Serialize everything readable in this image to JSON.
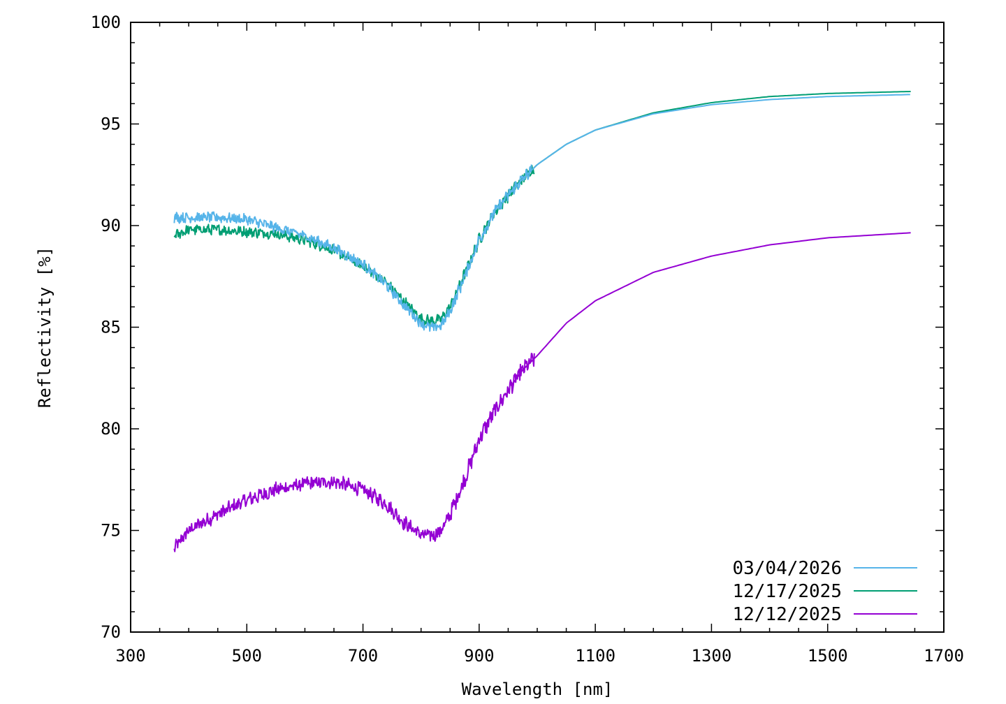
{
  "chart_data": {
    "type": "line",
    "xlabel": "Wavelength [nm]",
    "ylabel": "Reflectivity [%]",
    "xlim": [
      300,
      1700
    ],
    "ylim": [
      70,
      100
    ],
    "xticks": [
      300,
      500,
      700,
      900,
      1100,
      1300,
      1500,
      1700
    ],
    "yticks": [
      70,
      75,
      80,
      85,
      90,
      95,
      100
    ],
    "x_minor_step": 50,
    "y_minor_step": 1,
    "grid": false,
    "legend_position": "bottom-right",
    "series": [
      {
        "name": "03/04/2026",
        "color": "#56b4e9",
        "noise_until_x": 990,
        "noise_amplitude": [
          0.45,
          0.15
        ],
        "points": [
          [
            375,
            90.4
          ],
          [
            400,
            90.4
          ],
          [
            450,
            90.4
          ],
          [
            500,
            90.3
          ],
          [
            550,
            89.9
          ],
          [
            600,
            89.5
          ],
          [
            650,
            88.9
          ],
          [
            700,
            88.1
          ],
          [
            740,
            87.1
          ],
          [
            770,
            86.1
          ],
          [
            800,
            85.2
          ],
          [
            820,
            84.95
          ],
          [
            835,
            85.1
          ],
          [
            850,
            85.8
          ],
          [
            875,
            87.5
          ],
          [
            900,
            89.3
          ],
          [
            925,
            90.6
          ],
          [
            950,
            91.5
          ],
          [
            975,
            92.3
          ],
          [
            1000,
            93.0
          ],
          [
            1050,
            94.0
          ],
          [
            1100,
            94.7
          ],
          [
            1200,
            95.5
          ],
          [
            1300,
            95.95
          ],
          [
            1400,
            96.2
          ],
          [
            1500,
            96.35
          ],
          [
            1645,
            96.45
          ]
        ]
      },
      {
        "name": "12/17/2025",
        "color": "#009e73",
        "noise_until_x": 995,
        "noise_amplitude": [
          0.45,
          0.15
        ],
        "points": [
          [
            375,
            89.5
          ],
          [
            400,
            89.8
          ],
          [
            450,
            89.8
          ],
          [
            500,
            89.7
          ],
          [
            550,
            89.6
          ],
          [
            600,
            89.3
          ],
          [
            650,
            88.8
          ],
          [
            700,
            88.0
          ],
          [
            740,
            87.2
          ],
          [
            770,
            86.3
          ],
          [
            800,
            85.4
          ],
          [
            820,
            85.3
          ],
          [
            835,
            85.4
          ],
          [
            850,
            86.0
          ],
          [
            875,
            87.6
          ],
          [
            900,
            89.3
          ],
          [
            925,
            90.6
          ],
          [
            950,
            91.5
          ],
          [
            975,
            92.3
          ],
          [
            1000,
            93.0
          ],
          [
            1050,
            94.0
          ],
          [
            1100,
            94.7
          ],
          [
            1200,
            95.55
          ],
          [
            1300,
            96.05
          ],
          [
            1400,
            96.35
          ],
          [
            1500,
            96.5
          ],
          [
            1645,
            96.6
          ]
        ]
      },
      {
        "name": "12/12/2025",
        "color": "#9400d3",
        "noise_until_x": 995,
        "noise_amplitude": [
          0.6,
          0.2
        ],
        "points": [
          [
            375,
            74.1
          ],
          [
            400,
            75.0
          ],
          [
            450,
            75.8
          ],
          [
            500,
            76.5
          ],
          [
            550,
            77.0
          ],
          [
            600,
            77.3
          ],
          [
            650,
            77.4
          ],
          [
            700,
            77.0
          ],
          [
            740,
            76.3
          ],
          [
            770,
            75.4
          ],
          [
            800,
            74.8
          ],
          [
            820,
            74.75
          ],
          [
            835,
            75.0
          ],
          [
            850,
            75.8
          ],
          [
            875,
            77.5
          ],
          [
            900,
            79.5
          ],
          [
            925,
            80.8
          ],
          [
            950,
            81.9
          ],
          [
            975,
            82.9
          ],
          [
            1000,
            83.6
          ],
          [
            1050,
            85.2
          ],
          [
            1100,
            86.3
          ],
          [
            1200,
            87.7
          ],
          [
            1300,
            88.5
          ],
          [
            1400,
            89.05
          ],
          [
            1500,
            89.4
          ],
          [
            1645,
            89.65
          ]
        ]
      }
    ]
  }
}
